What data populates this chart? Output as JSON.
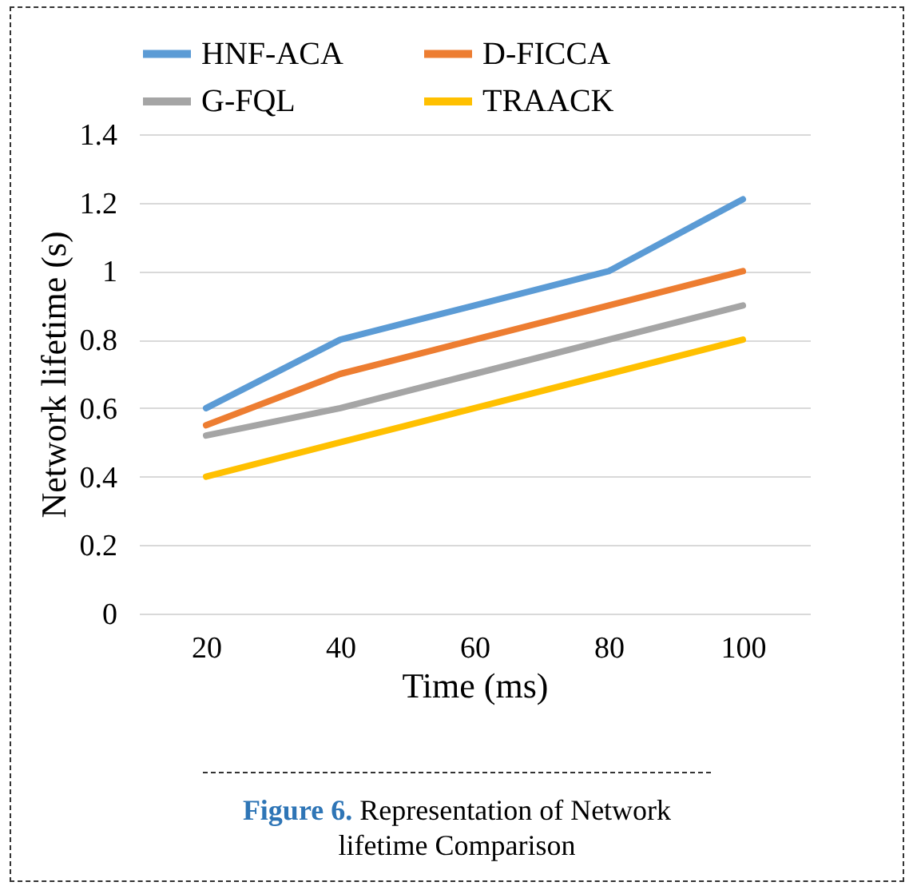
{
  "chart_data": {
    "type": "line",
    "xlabel": "Time (ms)",
    "ylabel": "Network lifetime (s)",
    "categories": [
      "20",
      "40",
      "60",
      "80",
      "100"
    ],
    "series": [
      {
        "name": "HNF-ACA",
        "color": "#5b9bd5",
        "values": [
          0.6,
          0.8,
          0.9,
          1.0,
          1.21
        ]
      },
      {
        "name": "D-FICCA",
        "color": "#ed7d31",
        "values": [
          0.55,
          0.7,
          0.8,
          0.9,
          1.0
        ]
      },
      {
        "name": "G-FQL",
        "color": "#a5a5a5",
        "values": [
          0.52,
          0.6,
          0.7,
          0.8,
          0.9
        ]
      },
      {
        "name": "TRAACK",
        "color": "#ffc000",
        "values": [
          0.4,
          0.5,
          0.6,
          0.7,
          0.8
        ]
      }
    ],
    "ylim": [
      0,
      1.4
    ],
    "yticks": [
      0,
      0.2,
      0.4,
      0.6,
      0.8,
      1,
      1.2,
      1.4
    ],
    "grid": "y",
    "legend": "top",
    "marker": "none",
    "line_style": "solid",
    "annotations": [
      "Figure 6.",
      "Representation of Network lifetime Comparison"
    ]
  }
}
